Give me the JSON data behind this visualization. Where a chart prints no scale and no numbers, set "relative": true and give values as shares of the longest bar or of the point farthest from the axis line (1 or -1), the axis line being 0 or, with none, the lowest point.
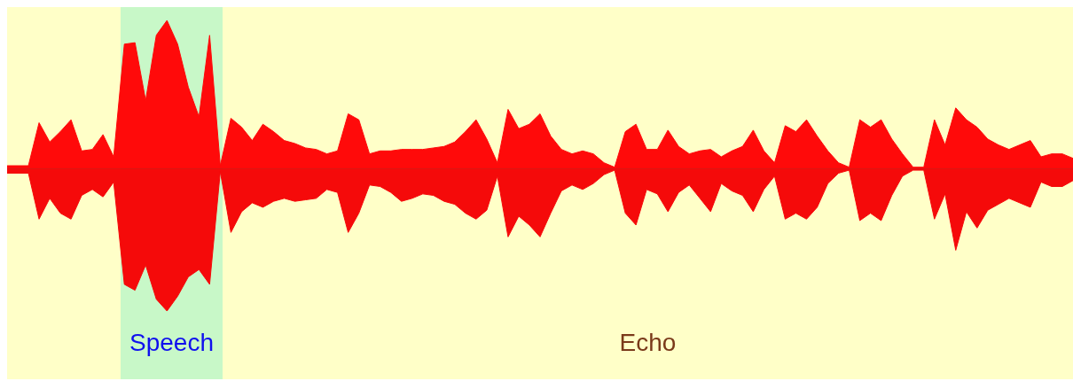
{
  "chart_data": {
    "type": "area",
    "relative": true,
    "categories": [
      null,
      null,
      null,
      null,
      null,
      null,
      null,
      null,
      null,
      null,
      null,
      null,
      null,
      null,
      null,
      null,
      null,
      null,
      null,
      null,
      null,
      null,
      null,
      null,
      null,
      null,
      null,
      null,
      null,
      null,
      null,
      null,
      null,
      null,
      null,
      null,
      null,
      null,
      null,
      null,
      null,
      null,
      null,
      null,
      null,
      null,
      null,
      null,
      null,
      null,
      null,
      null,
      null,
      null,
      null,
      null,
      null,
      null,
      null,
      null,
      null,
      null,
      null,
      null,
      null,
      null,
      null,
      null,
      null,
      null,
      null,
      null,
      null,
      null,
      null,
      null,
      null,
      null,
      null,
      null,
      null,
      null,
      null,
      null,
      null,
      null,
      null,
      null,
      null,
      null,
      null,
      null,
      null,
      null,
      null,
      null,
      null,
      null,
      null,
      null,
      null
    ],
    "series": [
      {
        "color": "#ff0a0a",
        "values": [
          0.02,
          0.02,
          0.02,
          0.31,
          0.18,
          0.25,
          0.33,
          0.12,
          0.13,
          0.23,
          0.08,
          0.84,
          0.85,
          0.46,
          0.9,
          1.0,
          0.84,
          0.55,
          0.35,
          0.9,
          0.02,
          0.34,
          0.28,
          0.19,
          0.3,
          0.25,
          0.19,
          0.17,
          0.14,
          0.13,
          0.1,
          0.12,
          0.37,
          0.33,
          0.1,
          0.12,
          0.12,
          0.13,
          0.13,
          0.13,
          0.14,
          0.15,
          0.18,
          0.25,
          0.33,
          0.2,
          0.04,
          0.4,
          0.27,
          0.3,
          0.37,
          0.22,
          0.13,
          0.1,
          0.12,
          0.1,
          0.04,
          0.01,
          0.25,
          0.3,
          0.13,
          0.13,
          0.26,
          0.15,
          0.1,
          0.12,
          0.13,
          0.08,
          0.12,
          0.15,
          0.26,
          0.12,
          0.04,
          0.29,
          0.25,
          0.33,
          0.22,
          0.12,
          0.04,
          0.01,
          0.33,
          0.28,
          0.33,
          0.2,
          0.1,
          0.01,
          0.01,
          0.33,
          0.16,
          0.41,
          0.33,
          0.28,
          0.2,
          0.16,
          0.13,
          0.16,
          0.19,
          0.08,
          0.1,
          0.1,
          0.07
        ]
      },
      {
        "color": "#f50a0a",
        "values": [
          -0.03,
          -0.03,
          -0.03,
          -0.34,
          -0.2,
          -0.3,
          -0.34,
          -0.18,
          -0.14,
          -0.19,
          -0.09,
          -0.78,
          -0.82,
          -0.65,
          -0.88,
          -0.96,
          -0.86,
          -0.73,
          -0.68,
          -0.78,
          -0.02,
          -0.43,
          -0.29,
          -0.23,
          -0.26,
          -0.22,
          -0.2,
          -0.22,
          -0.21,
          -0.2,
          -0.14,
          -0.16,
          -0.43,
          -0.3,
          -0.11,
          -0.12,
          -0.16,
          -0.22,
          -0.2,
          -0.17,
          -0.18,
          -0.22,
          -0.24,
          -0.3,
          -0.34,
          -0.28,
          -0.05,
          -0.46,
          -0.32,
          -0.38,
          -0.46,
          -0.3,
          -0.15,
          -0.11,
          -0.14,
          -0.1,
          -0.04,
          -0.01,
          -0.3,
          -0.38,
          -0.14,
          -0.17,
          -0.29,
          -0.16,
          -0.11,
          -0.2,
          -0.29,
          -0.1,
          -0.15,
          -0.18,
          -0.29,
          -0.14,
          -0.05,
          -0.34,
          -0.3,
          -0.34,
          -0.26,
          -0.1,
          -0.03,
          -0.01,
          -0.35,
          -0.3,
          -0.35,
          -0.18,
          -0.05,
          -0.01,
          -0.01,
          -0.34,
          -0.17,
          -0.55,
          -0.29,
          -0.4,
          -0.28,
          -0.24,
          -0.2,
          -0.23,
          -0.26,
          -0.09,
          -0.12,
          -0.12,
          -0.08
        ]
      }
    ],
    "annotations": [
      "Speech",
      "Echo"
    ]
  }
}
